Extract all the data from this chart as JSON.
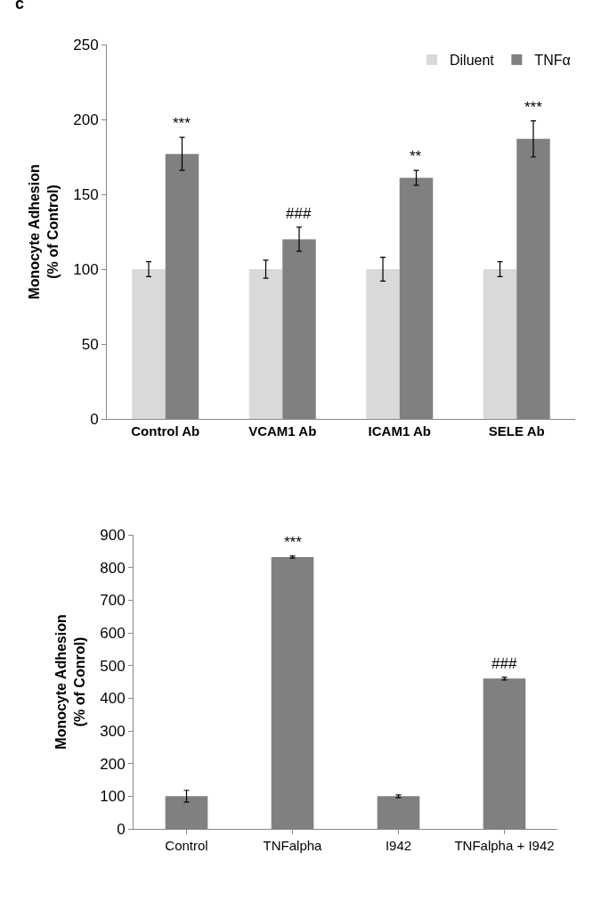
{
  "chart_data": [
    {
      "type": "bar",
      "annotations": [
        "c"
      ],
      "ylabel": "Monocyte Adhesion\n(% of Control)",
      "categories": [
        "Control Ab",
        "VCAM1 Ab",
        "ICAM1 Ab",
        "SELE Ab"
      ],
      "series": [
        {
          "name": "Diluent",
          "color": "#d9d9d9",
          "values": [
            100,
            100,
            100,
            100
          ],
          "errors": [
            5,
            6,
            8,
            5
          ]
        },
        {
          "name": "TNFα",
          "color": "#808080",
          "values": [
            177,
            120,
            161,
            187
          ],
          "errors": [
            11,
            8,
            5,
            12
          ],
          "value_labels": [
            "***",
            "###",
            "**",
            "***"
          ]
        }
      ],
      "ylim": [
        0,
        250
      ],
      "yticks": [
        0,
        50,
        100,
        150,
        200,
        250
      ],
      "grid": false,
      "legend": "top right"
    },
    {
      "type": "bar",
      "ylabel": "Monocyte Adhesion\n(% of Conrol)",
      "categories": [
        "Control",
        "TNFalpha",
        "I942",
        "TNFalpha + I942"
      ],
      "values": [
        100,
        832,
        100,
        460
      ],
      "errors": [
        18,
        3,
        4,
        4
      ],
      "value_labels": [
        null,
        "***",
        null,
        "###"
      ],
      "color": "#808080",
      "ylim": [
        0,
        900
      ],
      "yticks": [
        0,
        100,
        200,
        300,
        400,
        500,
        600,
        700,
        800,
        900
      ],
      "grid": false,
      "legend": false
    }
  ]
}
